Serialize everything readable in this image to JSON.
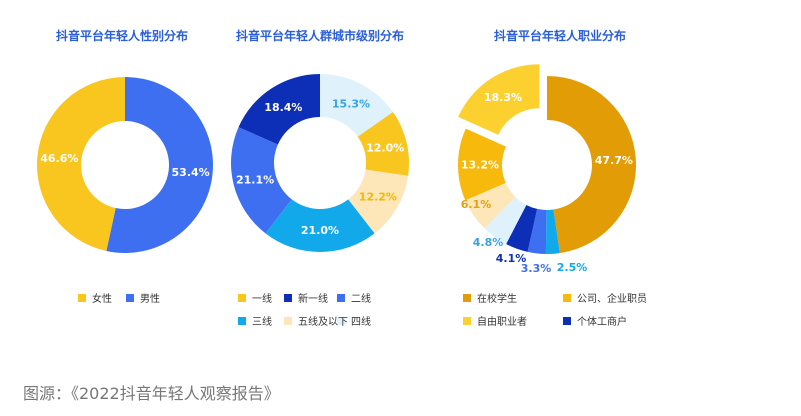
{
  "source_caption": "图源：《2022抖音年轻人观察报告》",
  "chart_data": [
    {
      "type": "pie",
      "donut": true,
      "title": "抖音平台年轻人性别分布",
      "series": [
        {
          "name": "女性",
          "value": 46.6,
          "label": "46.6%",
          "color": "#f9c51f"
        },
        {
          "name": "男性",
          "value": 53.4,
          "label": "53.4%",
          "color": "#3d6ff0"
        }
      ],
      "legend_position": "bottom"
    },
    {
      "type": "pie",
      "donut": true,
      "title": "抖音平台年轻人群城市级别分布",
      "series": [
        {
          "name": "一线",
          "value": 12.0,
          "label": "12.0%",
          "color": "#f9c51f"
        },
        {
          "name": "新一线",
          "value": 18.4,
          "label": "18.4%",
          "color": "#0d2fb8"
        },
        {
          "name": "二线",
          "value": 21.1,
          "label": "21.1%",
          "color": "#3d6ff0"
        },
        {
          "name": "三线",
          "value": 21.0,
          "label": "21.0%",
          "color": "#12a9ea"
        },
        {
          "name": "四线",
          "value": 15.3,
          "label": "15.3%",
          "color": "#dff2fc"
        },
        {
          "name": "五线及以下",
          "value": 12.2,
          "label": "12.2%",
          "color": "#fde6b7"
        }
      ],
      "legend_position": "bottom"
    },
    {
      "type": "pie",
      "donut": true,
      "title": "抖音平台年轻人职业分布",
      "series": [
        {
          "name": "在校学生",
          "value": 47.7,
          "label": "47.7%",
          "color": "#e19c06"
        },
        {
          "name": "公司、企业职员",
          "value": 13.2,
          "label": "13.2%",
          "color": "#f6b90c"
        },
        {
          "name": "自由职业者",
          "value": 18.3,
          "label": "18.3%",
          "color": "#fcd12f"
        },
        {
          "name": "个体工商户",
          "value": 4.1,
          "label": "4.1%",
          "color": "#0d2fb8"
        },
        {
          "name": "",
          "value": 6.1,
          "label": "6.1%",
          "color": "#fde6b7"
        },
        {
          "name": "",
          "value": 4.8,
          "label": "4.8%",
          "color": "#dff2fc"
        },
        {
          "name": "",
          "value": 3.3,
          "label": "3.3%",
          "color": "#3d6ff0"
        },
        {
          "name": "",
          "value": 2.5,
          "label": "2.5%",
          "color": "#12a9ea"
        }
      ],
      "exploded": "自由职业者",
      "legend_position": "bottom"
    }
  ]
}
